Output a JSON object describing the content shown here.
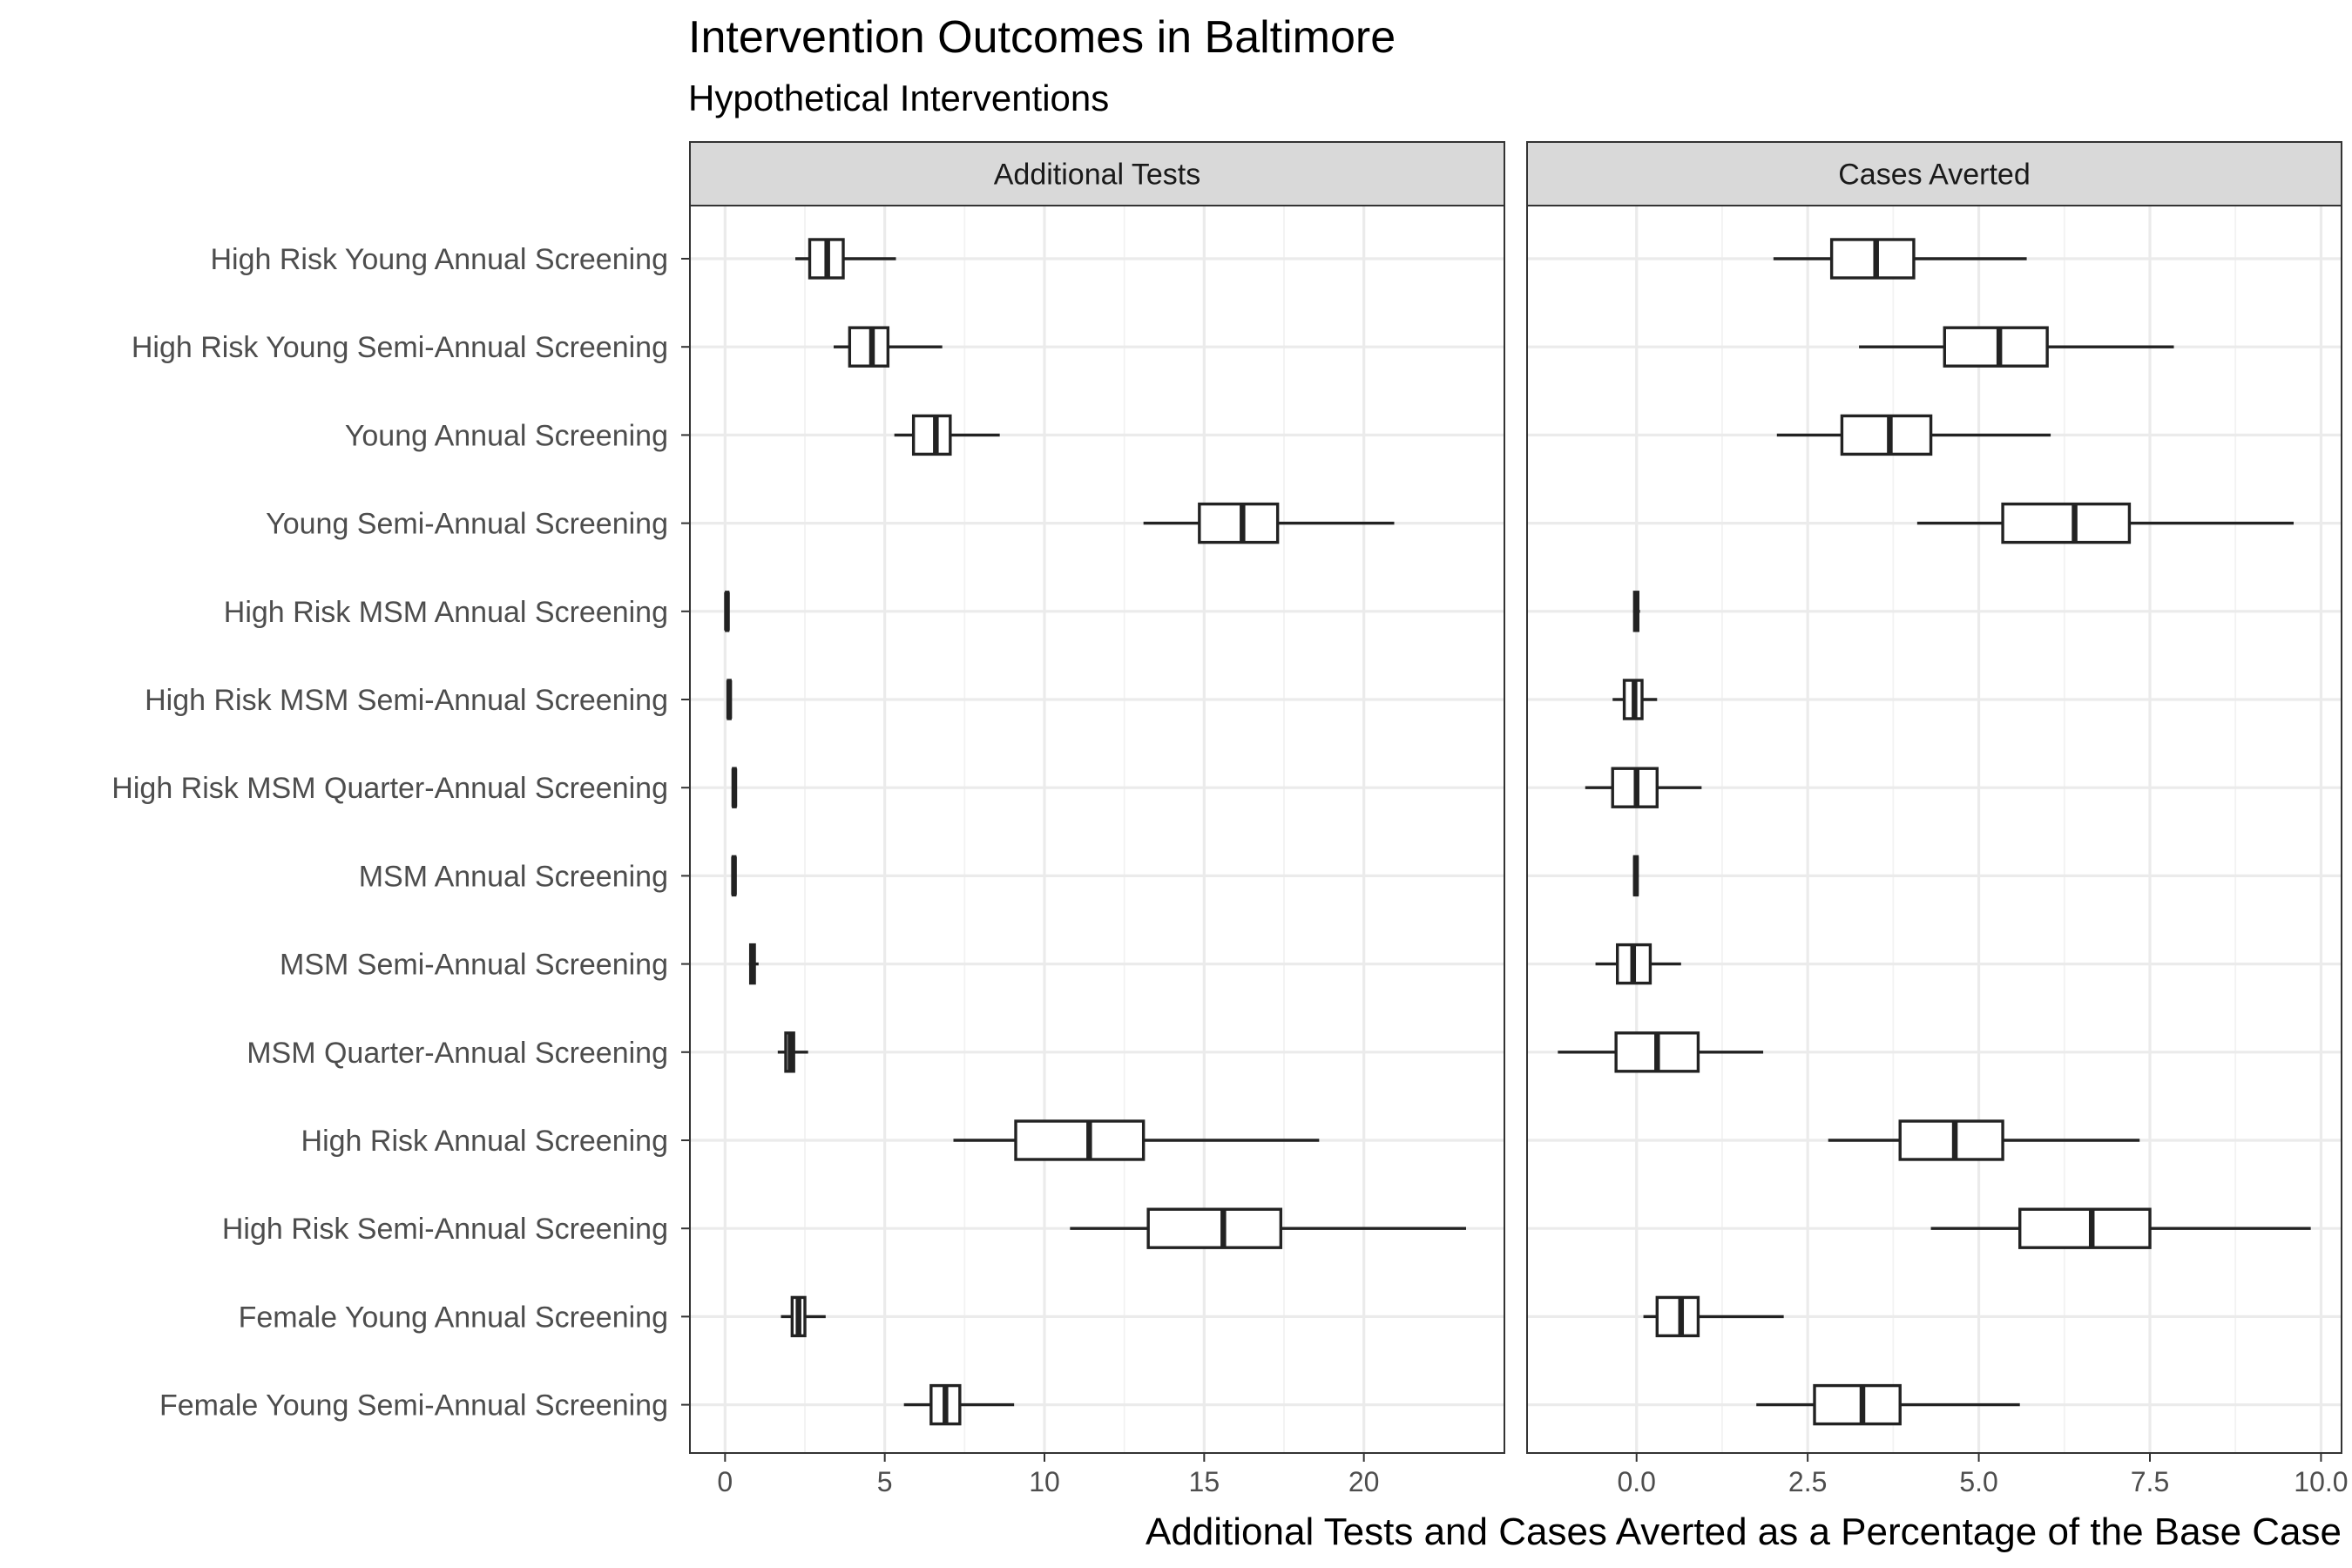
{
  "title": "Intervention Outcomes in Baltimore",
  "subtitle": "Hypothetical Interventions",
  "chart_data": {
    "type": "boxplot",
    "orientation": "horizontal",
    "xlabel": "Additional Tests and Cases Averted as a Percentage of the Base Case",
    "categories": [
      "High Risk Young Annual Screening",
      "High Risk Young Semi-Annual Screening",
      "Young Annual Screening",
      "Young Semi-Annual Screening",
      "High Risk MSM Annual Screening",
      "High Risk MSM Semi-Annual Screening",
      "High Risk MSM Quarter-Annual Screening",
      "MSM Annual Screening",
      "MSM Semi-Annual Screening",
      "MSM Quarter-Annual Screening",
      "High Risk Annual Screening",
      "High Risk Semi-Annual Screening",
      "Female Young Annual Screening",
      "Female Young Semi-Annual Screening"
    ],
    "panels": [
      {
        "name": "Additional Tests",
        "xlim": [
          -1.1,
          24.4
        ],
        "ticks": [
          0,
          5,
          10,
          15,
          20
        ],
        "tick_labels": [
          "0",
          "5",
          "10",
          "15",
          "20"
        ],
        "boxes": [
          {
            "min": 2.2,
            "q1": 2.65,
            "median": 3.2,
            "q3": 3.7,
            "max": 5.35
          },
          {
            "min": 3.4,
            "q1": 3.9,
            "median": 4.6,
            "q3": 5.1,
            "max": 6.8
          },
          {
            "min": 5.3,
            "q1": 5.9,
            "median": 6.6,
            "q3": 7.05,
            "max": 8.6
          },
          {
            "min": 13.1,
            "q1": 14.85,
            "median": 16.2,
            "q3": 17.3,
            "max": 20.95
          },
          {
            "min": 0.0,
            "q1": 0.04,
            "median": 0.06,
            "q3": 0.09,
            "max": 0.12
          },
          {
            "min": 0.08,
            "q1": 0.1,
            "median": 0.13,
            "q3": 0.16,
            "max": 0.19
          },
          {
            "min": 0.23,
            "q1": 0.26,
            "median": 0.29,
            "q3": 0.32,
            "max": 0.35
          },
          {
            "min": 0.22,
            "q1": 0.25,
            "median": 0.28,
            "q3": 0.31,
            "max": 0.34
          },
          {
            "min": 0.75,
            "q1": 0.8,
            "median": 0.86,
            "q3": 0.92,
            "max": 1.05
          },
          {
            "min": 1.65,
            "q1": 1.9,
            "median": 2.05,
            "q3": 2.15,
            "max": 2.6
          },
          {
            "min": 7.15,
            "q1": 9.1,
            "median": 11.4,
            "q3": 13.1,
            "max": 18.6
          },
          {
            "min": 10.8,
            "q1": 13.25,
            "median": 15.6,
            "q3": 17.4,
            "max": 23.2
          },
          {
            "min": 1.75,
            "q1": 2.1,
            "median": 2.3,
            "q3": 2.5,
            "max": 3.15
          },
          {
            "min": 5.6,
            "q1": 6.45,
            "median": 6.9,
            "q3": 7.35,
            "max": 9.05
          }
        ]
      },
      {
        "name": "Cases Averted",
        "xlim": [
          -1.6,
          10.3
        ],
        "ticks": [
          0.0,
          2.5,
          5.0,
          7.5,
          10.0
        ],
        "tick_labels": [
          "0.0",
          "2.5",
          "5.0",
          "7.5",
          "10.0"
        ],
        "boxes": [
          {
            "min": 2.0,
            "q1": 2.85,
            "median": 3.5,
            "q3": 4.05,
            "max": 5.7
          },
          {
            "min": 3.25,
            "q1": 4.5,
            "median": 5.3,
            "q3": 6.0,
            "max": 7.85
          },
          {
            "min": 2.05,
            "q1": 3.0,
            "median": 3.7,
            "q3": 4.3,
            "max": 6.05
          },
          {
            "min": 4.1,
            "q1": 5.35,
            "median": 6.4,
            "q3": 7.2,
            "max": 9.6
          },
          {
            "min": -0.05,
            "q1": -0.03,
            "median": 0.0,
            "q3": 0.02,
            "max": 0.05
          },
          {
            "min": -0.35,
            "q1": -0.18,
            "median": -0.03,
            "q3": 0.08,
            "max": 0.3
          },
          {
            "min": -0.75,
            "q1": -0.35,
            "median": 0.0,
            "q3": 0.3,
            "max": 0.95
          },
          {
            "min": -0.05,
            "q1": -0.03,
            "median": -0.01,
            "q3": 0.01,
            "max": 0.03
          },
          {
            "min": -0.6,
            "q1": -0.28,
            "median": -0.05,
            "q3": 0.2,
            "max": 0.65
          },
          {
            "min": -1.15,
            "q1": -0.3,
            "median": 0.3,
            "q3": 0.9,
            "max": 1.85
          },
          {
            "min": 2.8,
            "q1": 3.85,
            "median": 4.65,
            "q3": 5.35,
            "max": 7.35
          },
          {
            "min": 4.3,
            "q1": 5.6,
            "median": 6.65,
            "q3": 7.5,
            "max": 9.85
          },
          {
            "min": 0.1,
            "q1": 0.3,
            "median": 0.65,
            "q3": 0.9,
            "max": 2.15
          },
          {
            "min": 1.75,
            "q1": 2.6,
            "median": 3.3,
            "q3": 3.85,
            "max": 5.6
          }
        ]
      }
    ],
    "grid": true,
    "legend": "none"
  }
}
